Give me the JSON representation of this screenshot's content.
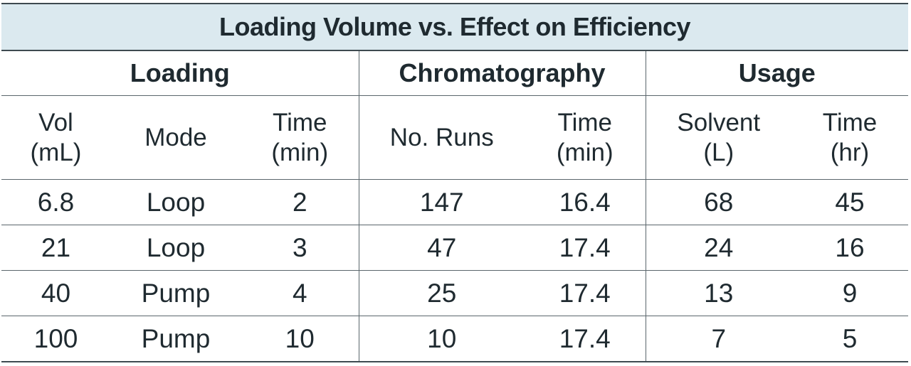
{
  "title": "Loading Volume vs. Effect on Efficiency",
  "groups": {
    "loading": "Loading",
    "chromatography": "Chromatography",
    "usage": "Usage"
  },
  "columns": {
    "vol": [
      "Vol",
      "(mL)"
    ],
    "mode": "Mode",
    "loading_time": [
      "Time",
      "(min)"
    ],
    "no_runs": "No. Runs",
    "chrom_time": [
      "Time",
      "(min)"
    ],
    "solvent": [
      "Solvent",
      "(L)"
    ],
    "usage_time": [
      "Time",
      "(hr)"
    ]
  },
  "rows": [
    [
      "6.8",
      "Loop",
      "2",
      "147",
      "16.4",
      "68",
      "45"
    ],
    [
      "21",
      "Loop",
      "3",
      "47",
      "17.4",
      "24",
      "16"
    ],
    [
      "40",
      "Pump",
      "4",
      "25",
      "17.4",
      "13",
      "9"
    ],
    [
      "100",
      "Pump",
      "10",
      "10",
      "17.4",
      "7",
      "5"
    ]
  ]
}
